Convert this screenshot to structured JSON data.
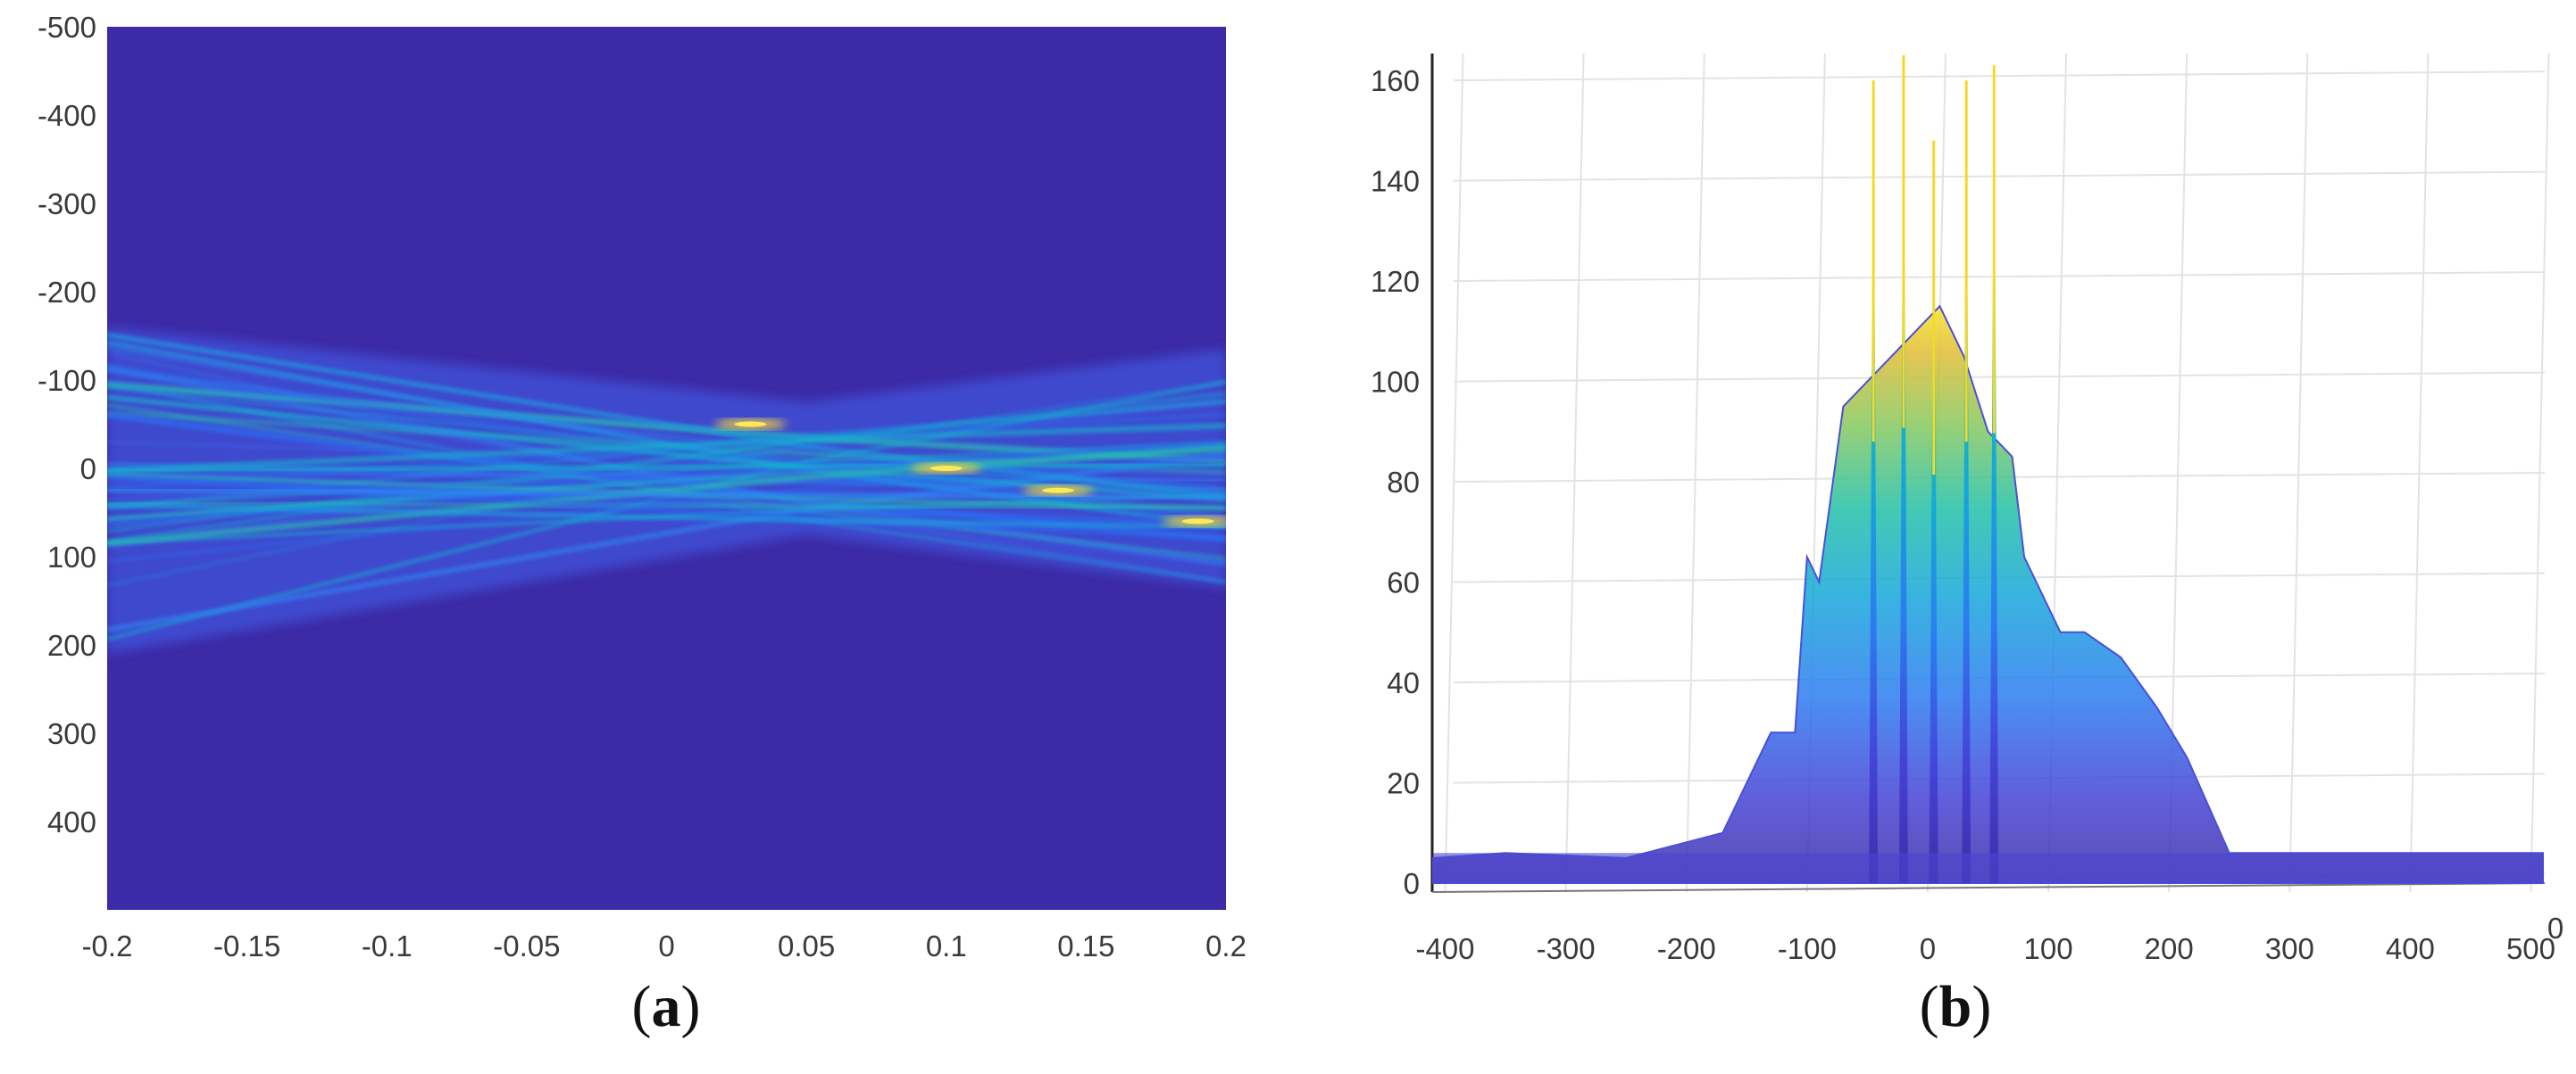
{
  "chart_data": [
    {
      "type": "heatmap",
      "panel_label": "(a)",
      "panel_letter": "a",
      "xlim": [
        -0.2,
        0.2
      ],
      "ylim": [
        -500,
        500
      ],
      "y_reversed": true,
      "xticks": [
        -0.2,
        -0.15,
        -0.1,
        -0.05,
        0,
        0.05,
        0.1,
        0.15,
        0.2
      ],
      "xtick_labels": [
        "-0.2",
        "-0.15",
        "-0.1",
        "-0.05",
        "0",
        "0.05",
        "0.1",
        "0.15",
        "0.2"
      ],
      "yticks": [
        -500,
        -400,
        -300,
        -200,
        -100,
        0,
        100,
        200,
        300,
        400
      ],
      "ytick_labels": [
        "-500",
        "-400",
        "-300",
        "-200",
        "-100",
        "0",
        "100",
        "200",
        "300",
        "400"
      ],
      "colormap": "parula",
      "background_color": "#3c2aa6",
      "beam": {
        "left_edge": [
          -160,
          210
        ],
        "right_edge": [
          -135,
          135
        ],
        "focus_x": 0.05,
        "focus_y": 0,
        "focus_spots": [
          {
            "x": 0.03,
            "y": -50
          },
          {
            "x": 0.1,
            "y": 0
          },
          {
            "x": 0.14,
            "y": 25
          },
          {
            "x": 0.19,
            "y": 60
          }
        ]
      },
      "grid": false
    },
    {
      "type": "area",
      "view": "3d-surface",
      "panel_label": "(b)",
      "panel_letter": "b",
      "xlim": [
        -410,
        510
      ],
      "ylim": [
        0,
        165
      ],
      "xticks": [
        -400,
        -300,
        -200,
        -100,
        0,
        100,
        200,
        300,
        400,
        500
      ],
      "xtick_labels": [
        "-400",
        "-300",
        "-200",
        "-100",
        "0",
        "100",
        "200",
        "300",
        "400",
        "500"
      ],
      "yticks": [
        0,
        20,
        40,
        60,
        80,
        100,
        120,
        140,
        160
      ],
      "ytick_labels": [
        "0",
        "20",
        "40",
        "60",
        "80",
        "100",
        "120",
        "140",
        "160"
      ],
      "depth_tick_label": "0",
      "colormap": "parula",
      "grid": true,
      "envelope": {
        "x": [
          -410,
          -350,
          -250,
          -170,
          -140,
          -130,
          -110,
          -100,
          -90,
          -70,
          -50,
          -30,
          -10,
          10,
          30,
          50,
          70,
          80,
          100,
          110,
          130,
          160,
          190,
          215,
          250,
          300,
          400,
          510
        ],
        "y": [
          5,
          6,
          5,
          10,
          25,
          30,
          30,
          65,
          60,
          95,
          100,
          105,
          110,
          115,
          105,
          90,
          85,
          65,
          55,
          50,
          50,
          45,
          35,
          25,
          6,
          6,
          6,
          6
        ]
      },
      "peaks": [
        {
          "x": -45,
          "y": 160
        },
        {
          "x": -20,
          "y": 165
        },
        {
          "x": 5,
          "y": 148
        },
        {
          "x": 32,
          "y": 160
        },
        {
          "x": 55,
          "y": 163
        }
      ]
    }
  ]
}
